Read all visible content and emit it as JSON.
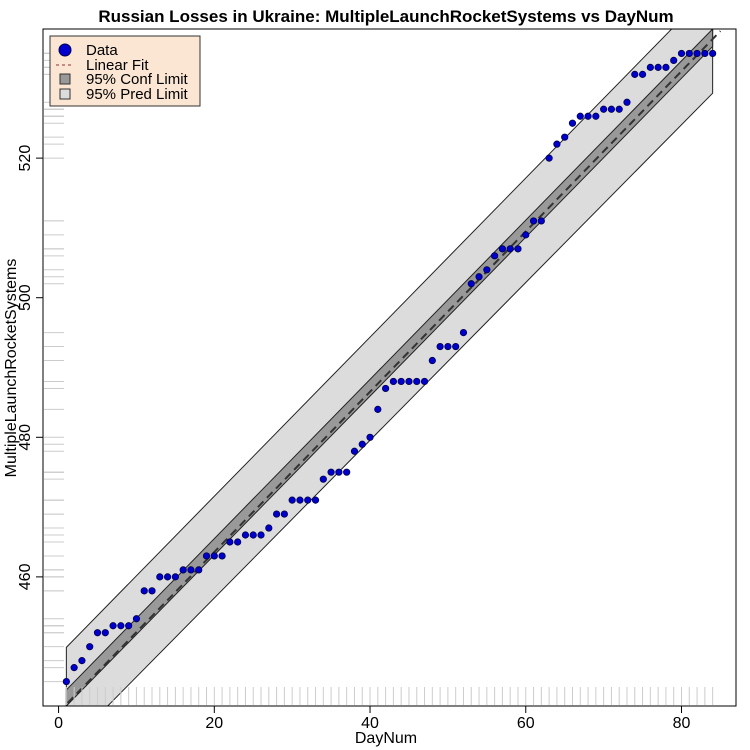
{
  "chart_data": {
    "type": "scatter",
    "title": "Russian Losses in Ukraine: MultipleLaunchRocketSystems vs DayNum",
    "xlabel": "DayNum",
    "ylabel": "MultipleLaunchRocketSystems",
    "xlim": [
      -2,
      87
    ],
    "ylim": [
      441.5,
      538.5
    ],
    "xticks": [
      0,
      20,
      40,
      60,
      80
    ],
    "yticks": [
      460,
      480,
      500,
      520
    ],
    "series": [
      {
        "name": "Data",
        "x": [
          1,
          2,
          3,
          4,
          5,
          6,
          7,
          8,
          9,
          10,
          11,
          12,
          13,
          14,
          15,
          16,
          17,
          18,
          19,
          20,
          21,
          22,
          23,
          24,
          25,
          26,
          27,
          28,
          29,
          30,
          31,
          32,
          33,
          34,
          35,
          36,
          37,
          38,
          39,
          40,
          41,
          42,
          43,
          44,
          45,
          46,
          47,
          48,
          49,
          50,
          51,
          52,
          53,
          54,
          55,
          56,
          57,
          58,
          59,
          60,
          61,
          62,
          63,
          64,
          65,
          66,
          67,
          68,
          69,
          70,
          71,
          72,
          73,
          74,
          75,
          76,
          77,
          78,
          79,
          80,
          81,
          82,
          83,
          84
        ],
        "y": [
          445,
          447,
          448,
          450,
          452,
          452,
          453,
          453,
          453,
          454,
          458,
          458,
          460,
          460,
          460,
          461,
          461,
          461,
          463,
          463,
          463,
          465,
          465,
          466,
          466,
          466,
          467,
          469,
          469,
          471,
          471,
          471,
          471,
          474,
          475,
          475,
          475,
          478,
          479,
          480,
          484,
          487,
          488,
          488,
          488,
          488,
          488,
          491,
          493,
          493,
          493,
          495,
          502,
          503,
          504,
          506,
          507,
          507,
          507,
          509,
          511,
          511,
          520,
          522,
          523,
          525,
          526,
          526,
          526,
          527,
          527,
          527,
          528,
          532,
          532,
          533,
          533,
          533,
          534,
          535,
          535,
          535,
          535,
          535
        ]
      }
    ],
    "fit": {
      "name": "Linear Fit",
      "x": [
        0,
        85
      ],
      "y": [
        440.6,
        538.2
      ]
    },
    "conf_band": {
      "name": "95% Conf Limit",
      "x": [
        1,
        84
      ],
      "lower": [
        441.5,
        536.0
      ],
      "upper": [
        443.8,
        538.5
      ]
    },
    "pred_band": {
      "name": "95% Pred Limit",
      "x": [
        1,
        84
      ],
      "lower": [
        435.5,
        529.3
      ],
      "upper": [
        449.9,
        544.5
      ]
    },
    "legend": {
      "position": "top-left",
      "items": [
        {
          "label": "Data",
          "kind": "point"
        },
        {
          "label": "Linear Fit",
          "kind": "dashed-line"
        },
        {
          "label": "95% Conf Limit",
          "kind": "dark-box"
        },
        {
          "label": "95% Pred Limit",
          "kind": "light-box"
        }
      ]
    },
    "colors": {
      "point_fill": "#0000cc",
      "point_stroke": "#00004d",
      "fit_line": "#333333",
      "conf_fill": "#999999",
      "pred_fill": "#dcdcdc",
      "legend_bg": "#fae6d2"
    },
    "grid": false
  }
}
